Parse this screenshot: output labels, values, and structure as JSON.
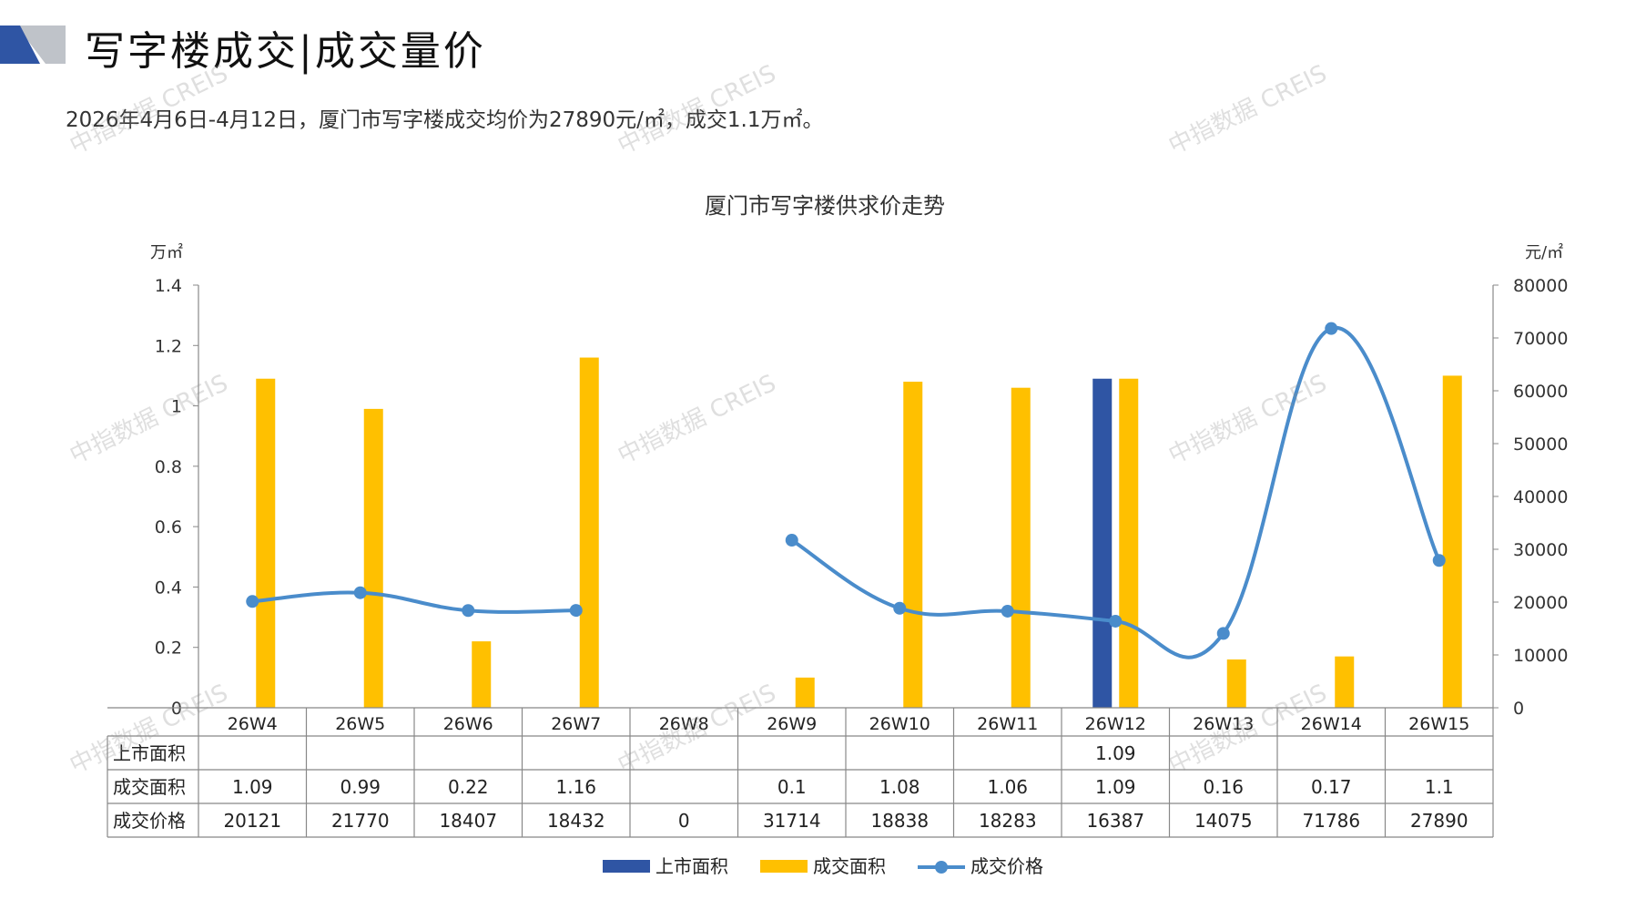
{
  "header": {
    "title": "写字楼成交|成交量价",
    "subtitle": "2026年4月6日-4月12日，厦门市写字楼成交均价为27890元/㎡，成交1.1万㎡。",
    "watermark": "中指数据 CREIS"
  },
  "colors": {
    "listed": "#2F55A4",
    "traded": "#FFC000",
    "price": "#4A8CCB",
    "deco_blue": "#2F55A4",
    "deco_grey": "#BFC3C9"
  },
  "chart_data": {
    "type": "bar",
    "title": "厦门市写字楼供求价走势",
    "ylabel": "万㎡",
    "ylabel2": "元/㎡",
    "ylim": [
      0,
      1.4
    ],
    "yticks": [
      "0",
      "0.2",
      "0.4",
      "0.6",
      "0.8",
      "1",
      "1.2",
      "1.4"
    ],
    "ylim2": [
      0,
      80000
    ],
    "yticks2": [
      "0",
      "10000",
      "20000",
      "30000",
      "40000",
      "50000",
      "60000",
      "70000",
      "80000"
    ],
    "categories": [
      "26W4",
      "26W5",
      "26W6",
      "26W7",
      "26W8",
      "26W9",
      "26W10",
      "26W11",
      "26W12",
      "26W13",
      "26W14",
      "26W15"
    ],
    "series": [
      {
        "name": "上市面积",
        "type": "bar",
        "axis": "left",
        "values": [
          null,
          null,
          null,
          null,
          null,
          null,
          null,
          null,
          1.09,
          null,
          null,
          null
        ],
        "labels": [
          "",
          "",
          "",
          "",
          "",
          "",
          "",
          "",
          "1.09",
          "",
          "",
          ""
        ]
      },
      {
        "name": "成交面积",
        "type": "bar",
        "axis": "left",
        "values": [
          1.09,
          0.99,
          0.22,
          1.16,
          null,
          0.1,
          1.08,
          1.06,
          1.09,
          0.16,
          0.17,
          1.1
        ],
        "labels": [
          "1.09",
          "0.99",
          "0.22",
          "1.16",
          "",
          "0.1",
          "1.08",
          "1.06",
          "1.09",
          "0.16",
          "0.17",
          "1.1"
        ]
      },
      {
        "name": "成交价格",
        "type": "line",
        "axis": "right",
        "values": [
          20121,
          21770,
          18407,
          18432,
          0,
          31714,
          18838,
          18283,
          16387,
          14075,
          71786,
          27890
        ],
        "labels": [
          "20121",
          "21770",
          "18407",
          "18432",
          "0",
          "31714",
          "18838",
          "18283",
          "16387",
          "14075",
          "71786",
          "27890"
        ]
      }
    ],
    "legend_position": "bottom",
    "grid": false
  }
}
